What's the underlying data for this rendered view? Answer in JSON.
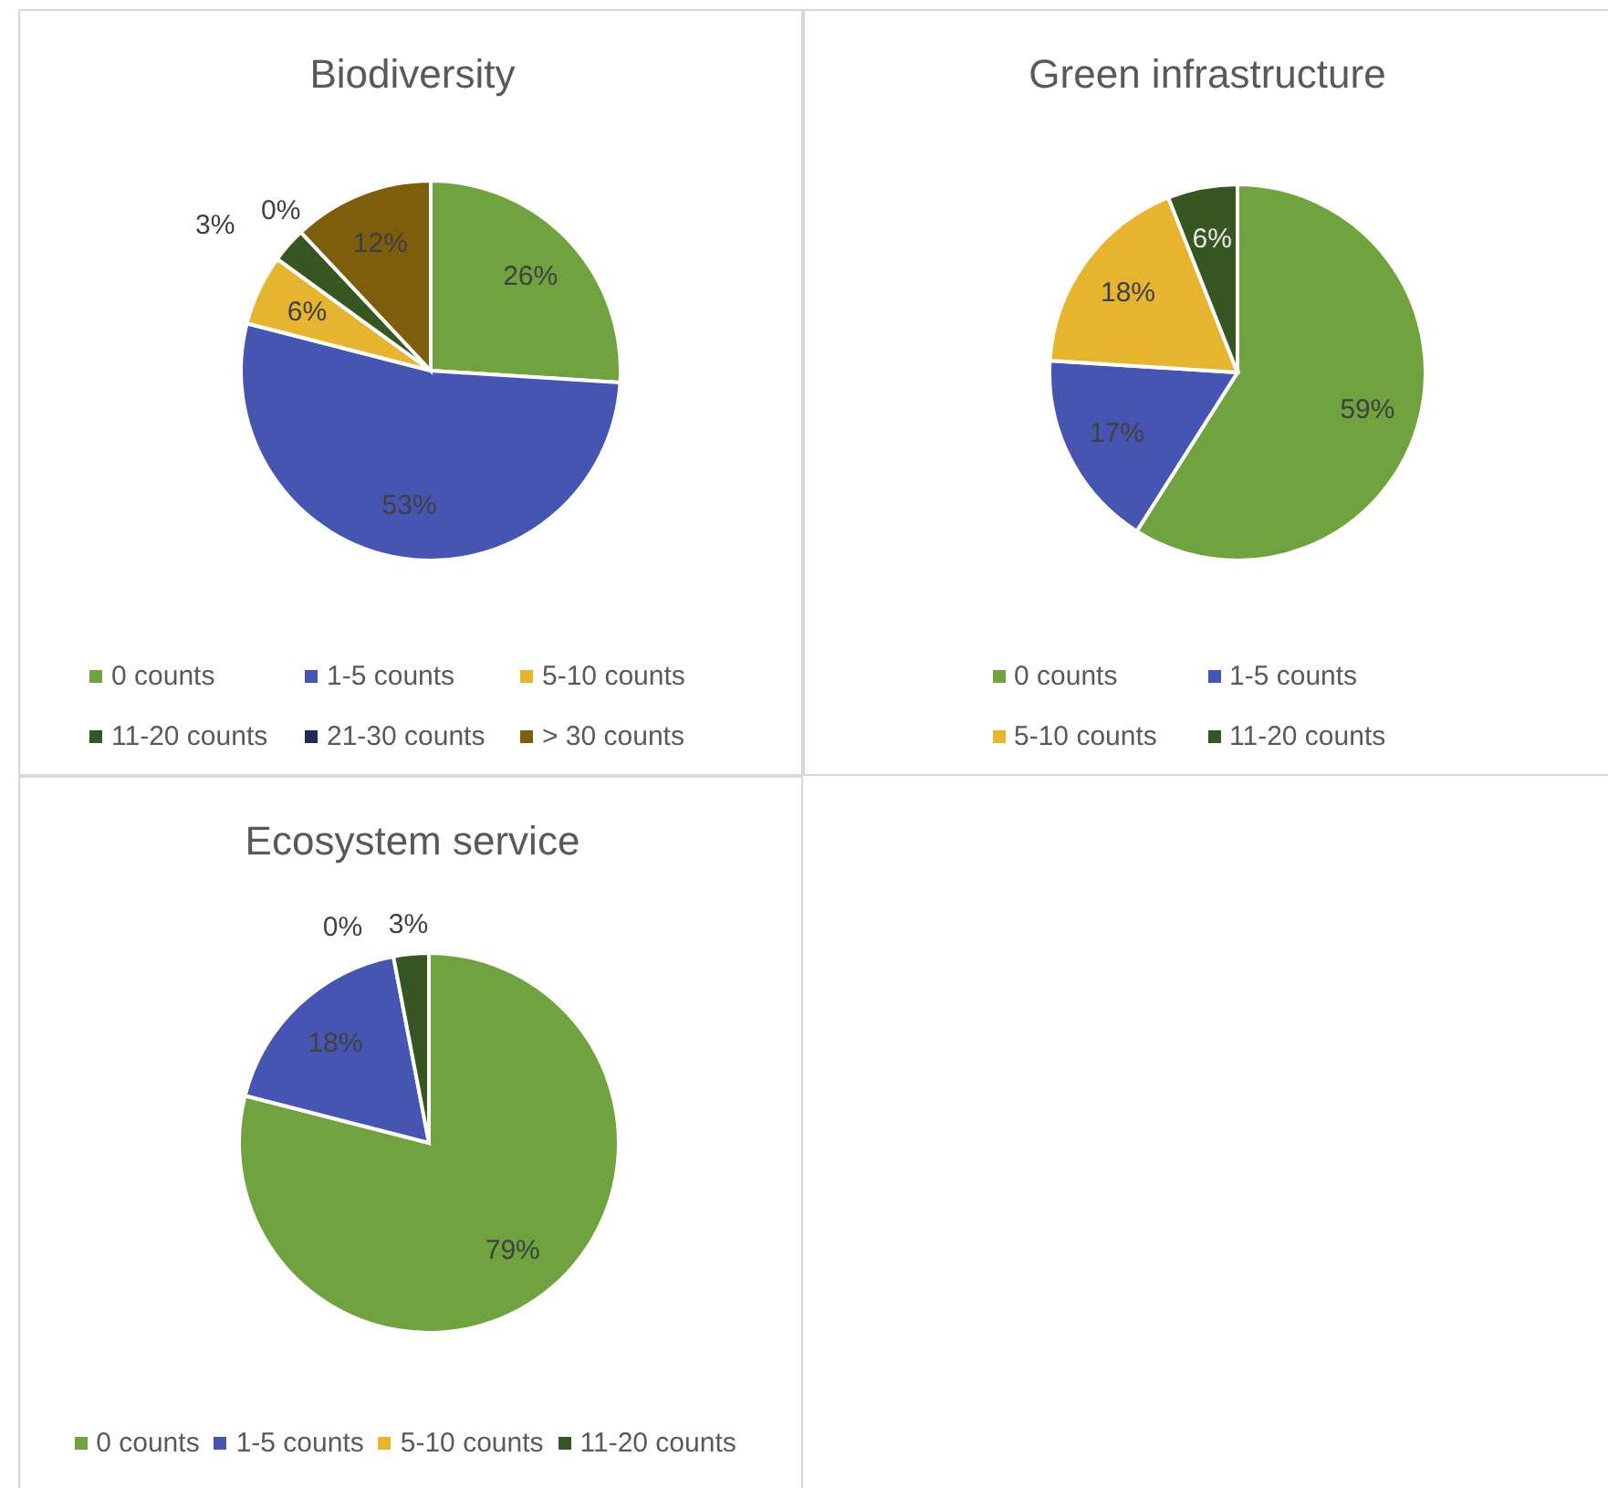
{
  "chart_data": [
    {
      "type": "pie",
      "title": "Biodiversity",
      "categories": [
        "0 counts",
        "1-5 counts",
        "5-10 counts",
        "11-20 counts",
        "21-30 counts",
        "> 30 counts"
      ],
      "values": [
        26,
        53,
        6,
        3,
        0,
        12
      ],
      "colors": [
        "#70a340",
        "#4755b2",
        "#e6b42e",
        "#375623",
        "#1f2a5c",
        "#7c5e0c"
      ],
      "value_labels": [
        "26%",
        "53%",
        "6%",
        "3%",
        "0%",
        "12%"
      ],
      "legend": "bottom"
    },
    {
      "type": "pie",
      "title": "Green infrastructure",
      "categories": [
        "0 counts",
        "1-5 counts",
        "5-10 counts",
        "11-20 counts"
      ],
      "values": [
        59,
        17,
        18,
        6
      ],
      "colors": [
        "#70a340",
        "#4755b2",
        "#e6b42e",
        "#375623"
      ],
      "value_labels": [
        "59%",
        "17%",
        "18%",
        "6%"
      ],
      "legend": "bottom"
    },
    {
      "type": "pie",
      "title": "Ecosystem service",
      "categories": [
        "0 counts",
        "1-5 counts",
        "5-10 counts",
        "11-20 counts"
      ],
      "values": [
        79,
        18,
        0,
        3
      ],
      "colors": [
        "#70a340",
        "#4755b2",
        "#e6b42e",
        "#375623"
      ],
      "value_labels": [
        "79%",
        "18%",
        "0%",
        "3%"
      ],
      "legend": "bottom"
    }
  ]
}
